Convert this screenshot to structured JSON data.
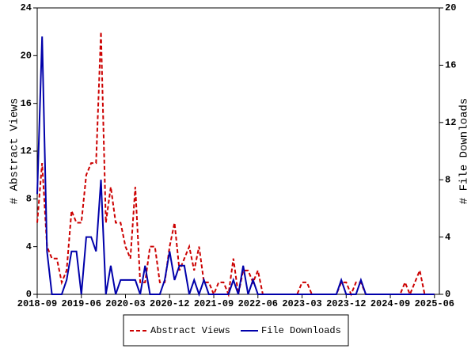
{
  "chart_data": {
    "type": "line",
    "x": [
      "2018-09",
      "2018-10",
      "2018-11",
      "2018-12",
      "2019-01",
      "2019-02",
      "2019-03",
      "2019-04",
      "2019-05",
      "2019-06",
      "2019-07",
      "2019-08",
      "2019-09",
      "2019-10",
      "2019-11",
      "2019-12",
      "2020-01",
      "2020-02",
      "2020-03",
      "2020-04",
      "2020-05",
      "2020-06",
      "2020-07",
      "2020-08",
      "2020-09",
      "2020-10",
      "2020-11",
      "2020-12",
      "2021-01",
      "2021-02",
      "2021-03",
      "2021-04",
      "2021-05",
      "2021-06",
      "2021-07",
      "2021-08",
      "2021-09",
      "2021-10",
      "2021-11",
      "2021-12",
      "2022-01",
      "2022-02",
      "2022-03",
      "2022-04",
      "2022-05",
      "2022-06",
      "2022-07",
      "2022-08",
      "2022-09",
      "2022-10",
      "2022-11",
      "2022-12",
      "2023-01",
      "2023-02",
      "2023-03",
      "2023-04",
      "2023-05",
      "2023-06",
      "2023-07",
      "2023-08",
      "2023-09",
      "2023-10",
      "2023-11",
      "2023-12",
      "2024-01",
      "2024-02",
      "2024-03",
      "2024-04",
      "2024-05",
      "2024-06",
      "2024-07",
      "2024-08",
      "2024-09",
      "2024-10",
      "2024-11",
      "2024-12",
      "2025-01",
      "2025-02",
      "2025-03",
      "2025-04",
      "2025-05",
      "2025-06"
    ],
    "xlim": [
      "2018-09",
      "2025-07"
    ],
    "xticks": [
      "2018-09",
      "2019-06",
      "2020-03",
      "2020-12",
      "2021-09",
      "2022-06",
      "2023-03",
      "2023-12",
      "2024-09",
      "2025-06"
    ],
    "ylabel": "# Abstract Views",
    "y2label": "# File Downloads",
    "ylim": [
      0,
      24
    ],
    "yticks": [
      0,
      4,
      8,
      12,
      16,
      20,
      24
    ],
    "y2lim": [
      0,
      20
    ],
    "y2ticks": [
      0,
      4,
      8,
      12,
      16,
      20
    ],
    "grid": false,
    "series": [
      {
        "name": "Abstract Views",
        "color": "#cc0000",
        "dash": true,
        "values": [
          6,
          11,
          4,
          3,
          3,
          1,
          2,
          7,
          6,
          6,
          10,
          11,
          11,
          22,
          6,
          9,
          6,
          6,
          4,
          3,
          9,
          1,
          1,
          4,
          4,
          1,
          1,
          4,
          6,
          2,
          3,
          4,
          2,
          4,
          1,
          1,
          0,
          1,
          1,
          0,
          3,
          0,
          2,
          2,
          1,
          2,
          0,
          0,
          0,
          0,
          0,
          0,
          0,
          0,
          1,
          1,
          0,
          0,
          0,
          0,
          0,
          0,
          1,
          1,
          0,
          1,
          1,
          0,
          0,
          0,
          0,
          0,
          0,
          0,
          0,
          1,
          0,
          1,
          2,
          0,
          0,
          0
        ]
      },
      {
        "name": "File Downloads",
        "color": "#0000aa",
        "axis": "y2",
        "dash": false,
        "values": [
          7,
          18,
          3,
          0,
          0,
          0,
          1,
          3,
          3,
          0,
          4,
          4,
          3,
          8,
          0,
          2,
          0,
          1,
          1,
          1,
          1,
          0,
          2,
          0,
          0,
          0,
          1,
          3,
          1,
          2,
          2,
          0,
          1,
          0,
          1,
          0,
          0,
          0,
          0,
          0,
          1,
          0,
          2,
          0,
          1,
          0,
          0,
          0,
          0,
          0,
          0,
          0,
          0,
          0,
          0,
          0,
          0,
          0,
          0,
          0,
          0,
          0,
          1,
          0,
          0,
          0,
          1,
          0,
          0,
          0,
          0,
          0,
          0,
          0,
          0,
          0,
          0,
          0,
          0,
          0,
          0,
          0
        ]
      }
    ]
  }
}
